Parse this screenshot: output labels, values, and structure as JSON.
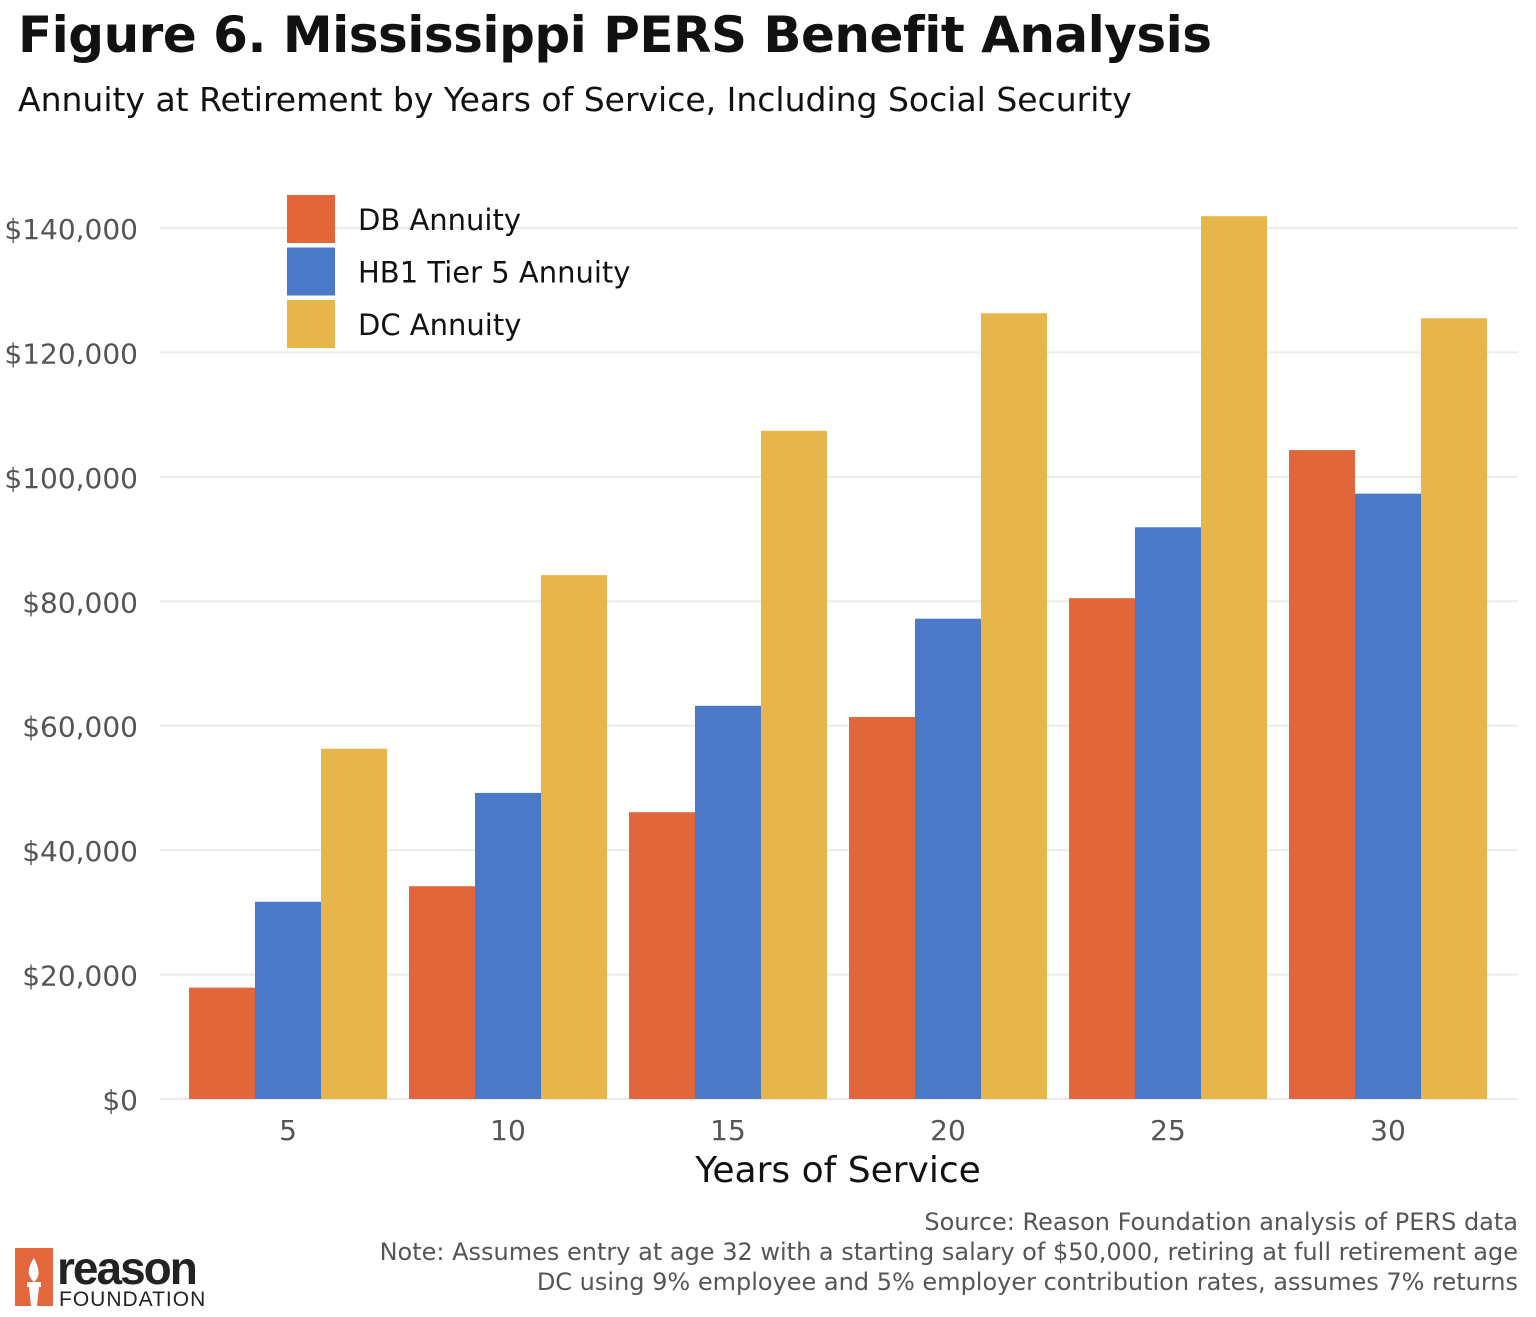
{
  "title": "Figure 6. Mississippi PERS Benefit Analysis",
  "subtitle": "Annuity at Retirement by Years of Service, Including Social Security",
  "source": "Source: Reason Foundation analysis of PERS data",
  "note1": "Note: Assumes entry at age 32 with a starting salary of $50,000, retiring at full retirement age",
  "note2": "DC using 9% employee and 5% employer contribution rates, assumes 7% returns",
  "logo": {
    "word": "reason",
    "sub": "FOUNDATION",
    "color": "#e2673a"
  },
  "chart_data": {
    "type": "bar",
    "xlabel": "Years of Service",
    "ylabel": "",
    "categories": [
      "5",
      "10",
      "15",
      "20",
      "25",
      "30"
    ],
    "ylim": [
      0,
      140000
    ],
    "yticks": [
      0,
      20000,
      40000,
      60000,
      80000,
      100000,
      120000,
      140000
    ],
    "ytick_labels": [
      "$0",
      "$20,000",
      "$40,000",
      "$60,000",
      "$80,000",
      "$100,000",
      "$120,000",
      "$140,000"
    ],
    "grid": true,
    "legend_position": "top-left",
    "series": [
      {
        "name": "DB Annuity",
        "color": "#e1663a",
        "values": [
          17900,
          34200,
          46100,
          61400,
          80500,
          104300
        ]
      },
      {
        "name": "HB1 Tier 5 Annuity",
        "color": "#4c78c8",
        "values": [
          31700,
          49200,
          63200,
          77200,
          91900,
          97300
        ]
      },
      {
        "name": "DC Annuity",
        "color": "#e6b64a",
        "values": [
          56300,
          84200,
          107400,
          126300,
          141900,
          125500
        ]
      }
    ]
  }
}
